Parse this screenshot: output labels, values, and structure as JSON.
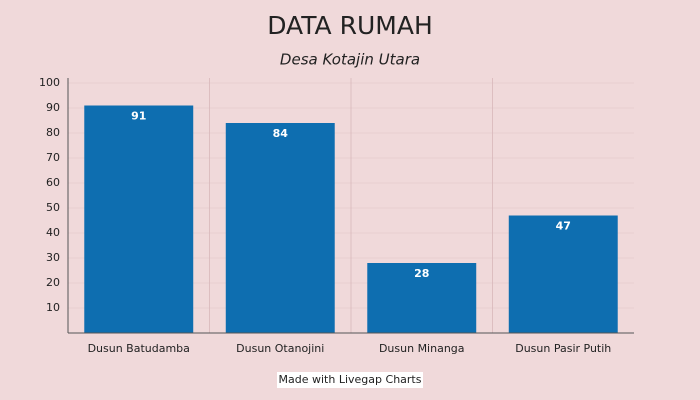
{
  "chart_data": {
    "type": "bar",
    "title": "DATA RUMAH",
    "subtitle": "Desa Kotajin Utara",
    "categories": [
      "Dusun Batudamba",
      "Dusun Otanojini",
      "Dusun Minanga",
      "Dusun Pasir Putih"
    ],
    "values": [
      91,
      84,
      28,
      47
    ],
    "color": "#0e6eb0",
    "ylim": [
      0,
      100
    ],
    "yticks": [
      10,
      20,
      30,
      40,
      50,
      60,
      70,
      80,
      90,
      100
    ],
    "grid": true,
    "credit": "Made with Livegap Charts"
  }
}
